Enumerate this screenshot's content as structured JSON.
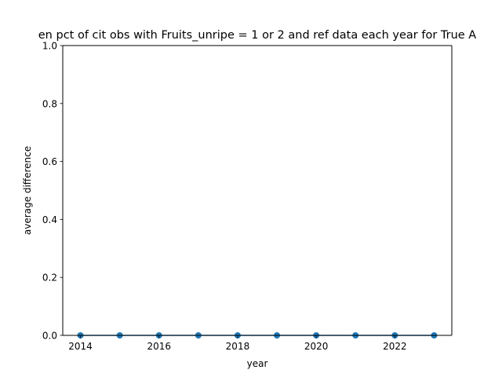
{
  "chart_data": {
    "type": "line",
    "title": "en pct of cit obs with Fruits_unripe = 1 or 2 and ref data each year for True A",
    "xlabel": "year",
    "ylabel": "average difference",
    "xlim": [
      2013.55,
      2023.45
    ],
    "ylim": [
      0,
      1
    ],
    "x_ticks": [
      "2014",
      "2016",
      "2018",
      "2020",
      "2022"
    ],
    "y_ticks": [
      "0.0",
      "0.2",
      "0.4",
      "0.6",
      "0.8",
      "1.0"
    ],
    "grid": false,
    "series": [
      {
        "color": "#1f77b4",
        "marker": "circle",
        "x": [
          2014,
          2015,
          2016,
          2017,
          2018,
          2019,
          2020,
          2021,
          2022,
          2023
        ],
        "y": [
          0,
          0,
          0,
          0,
          0,
          0,
          0,
          0,
          0,
          0
        ]
      }
    ]
  }
}
